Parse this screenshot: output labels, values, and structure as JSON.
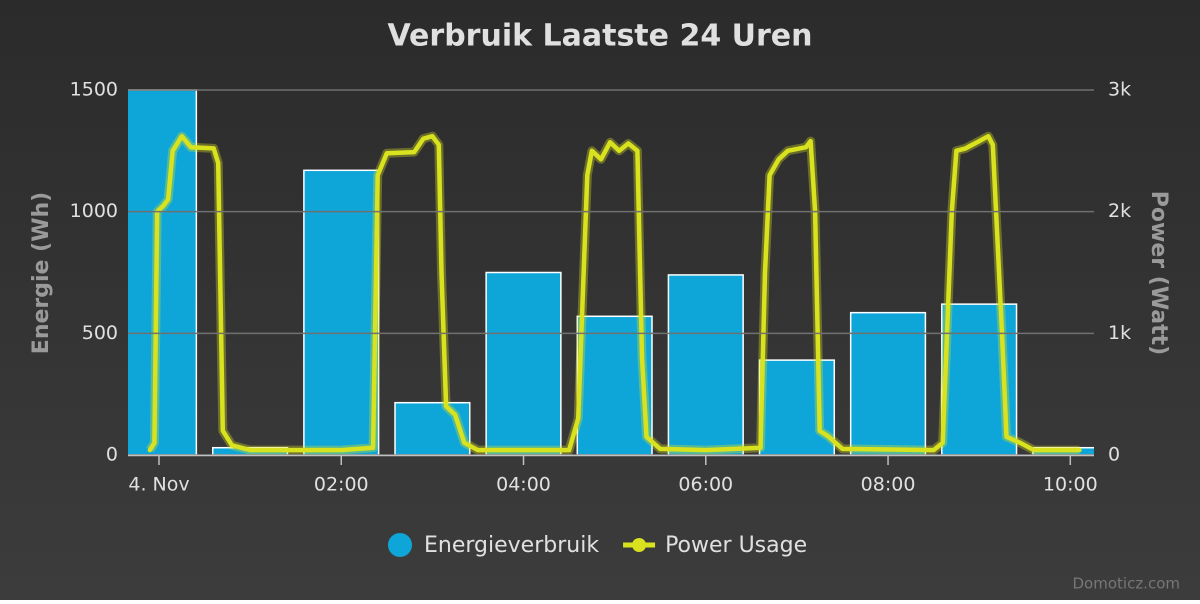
{
  "chart_data": {
    "type": "combo",
    "title": "Verbruik Laatste 24 Uren",
    "y_label": "Energie (Wh)",
    "y2_label": "Power (Watt)",
    "credits": "Domoticz.com",
    "xlim": [
      -0.34,
      10.26
    ],
    "xticks": [
      {
        "value": 0,
        "label": "4. Nov"
      },
      {
        "value": 2,
        "label": "02:00"
      },
      {
        "value": 4,
        "label": "04:00"
      },
      {
        "value": 6,
        "label": "06:00"
      },
      {
        "value": 8,
        "label": "08:00"
      },
      {
        "value": 10,
        "label": "10:00"
      }
    ],
    "ylim": [
      0,
      1500
    ],
    "yticks": [
      0,
      500,
      1000,
      1500
    ],
    "y2lim": [
      0,
      3000
    ],
    "y2ticks": [
      0,
      {
        "value": 1000,
        "label": "1k"
      },
      {
        "value": 2000,
        "label": "2k"
      },
      {
        "value": 3000,
        "label": "3k"
      }
    ],
    "grid": true,
    "series": [
      {
        "name": "Energieverbruik",
        "type": "bar",
        "color": "#0ea5d8",
        "x": [
          0,
          1,
          2,
          3,
          4,
          5,
          6,
          7,
          8,
          9,
          10
        ],
        "values": [
          1500,
          30,
          1170,
          215,
          750,
          570,
          740,
          390,
          585,
          620,
          30
        ]
      },
      {
        "name": "Power Usage",
        "type": "line",
        "axis": "y2",
        "color": "#d9e21f",
        "x": [
          -0.1,
          -0.05,
          -0.02,
          0.05,
          0.1,
          0.15,
          0.25,
          0.35,
          0.6,
          0.65,
          0.7,
          0.8,
          1.0,
          2.0,
          2.35,
          2.4,
          2.5,
          2.8,
          2.9,
          3.0,
          3.07,
          3.1,
          3.15,
          3.25,
          3.35,
          3.5,
          4.5,
          4.6,
          4.7,
          4.75,
          4.85,
          4.95,
          5.05,
          5.15,
          5.25,
          5.3,
          5.35,
          5.5,
          6.0,
          6.6,
          6.65,
          6.7,
          6.8,
          6.9,
          7.1,
          7.15,
          7.2,
          7.25,
          7.35,
          7.5,
          8.5,
          8.6,
          8.7,
          8.75,
          8.85,
          9.0,
          9.1,
          9.15,
          9.25,
          9.3,
          9.45,
          9.6,
          10.1
        ],
        "values": [
          40,
          100,
          2000,
          2050,
          2100,
          2500,
          2620,
          2530,
          2520,
          2400,
          200,
          80,
          40,
          40,
          60,
          2300,
          2480,
          2490,
          2600,
          2620,
          2550,
          1500,
          400,
          330,
          100,
          40,
          40,
          300,
          2300,
          2500,
          2430,
          2570,
          2500,
          2560,
          2500,
          800,
          150,
          50,
          40,
          60,
          1500,
          2300,
          2430,
          2500,
          2530,
          2580,
          2000,
          200,
          150,
          50,
          40,
          100,
          2000,
          2500,
          2520,
          2580,
          2620,
          2550,
          1000,
          150,
          100,
          40,
          40
        ]
      }
    ]
  }
}
